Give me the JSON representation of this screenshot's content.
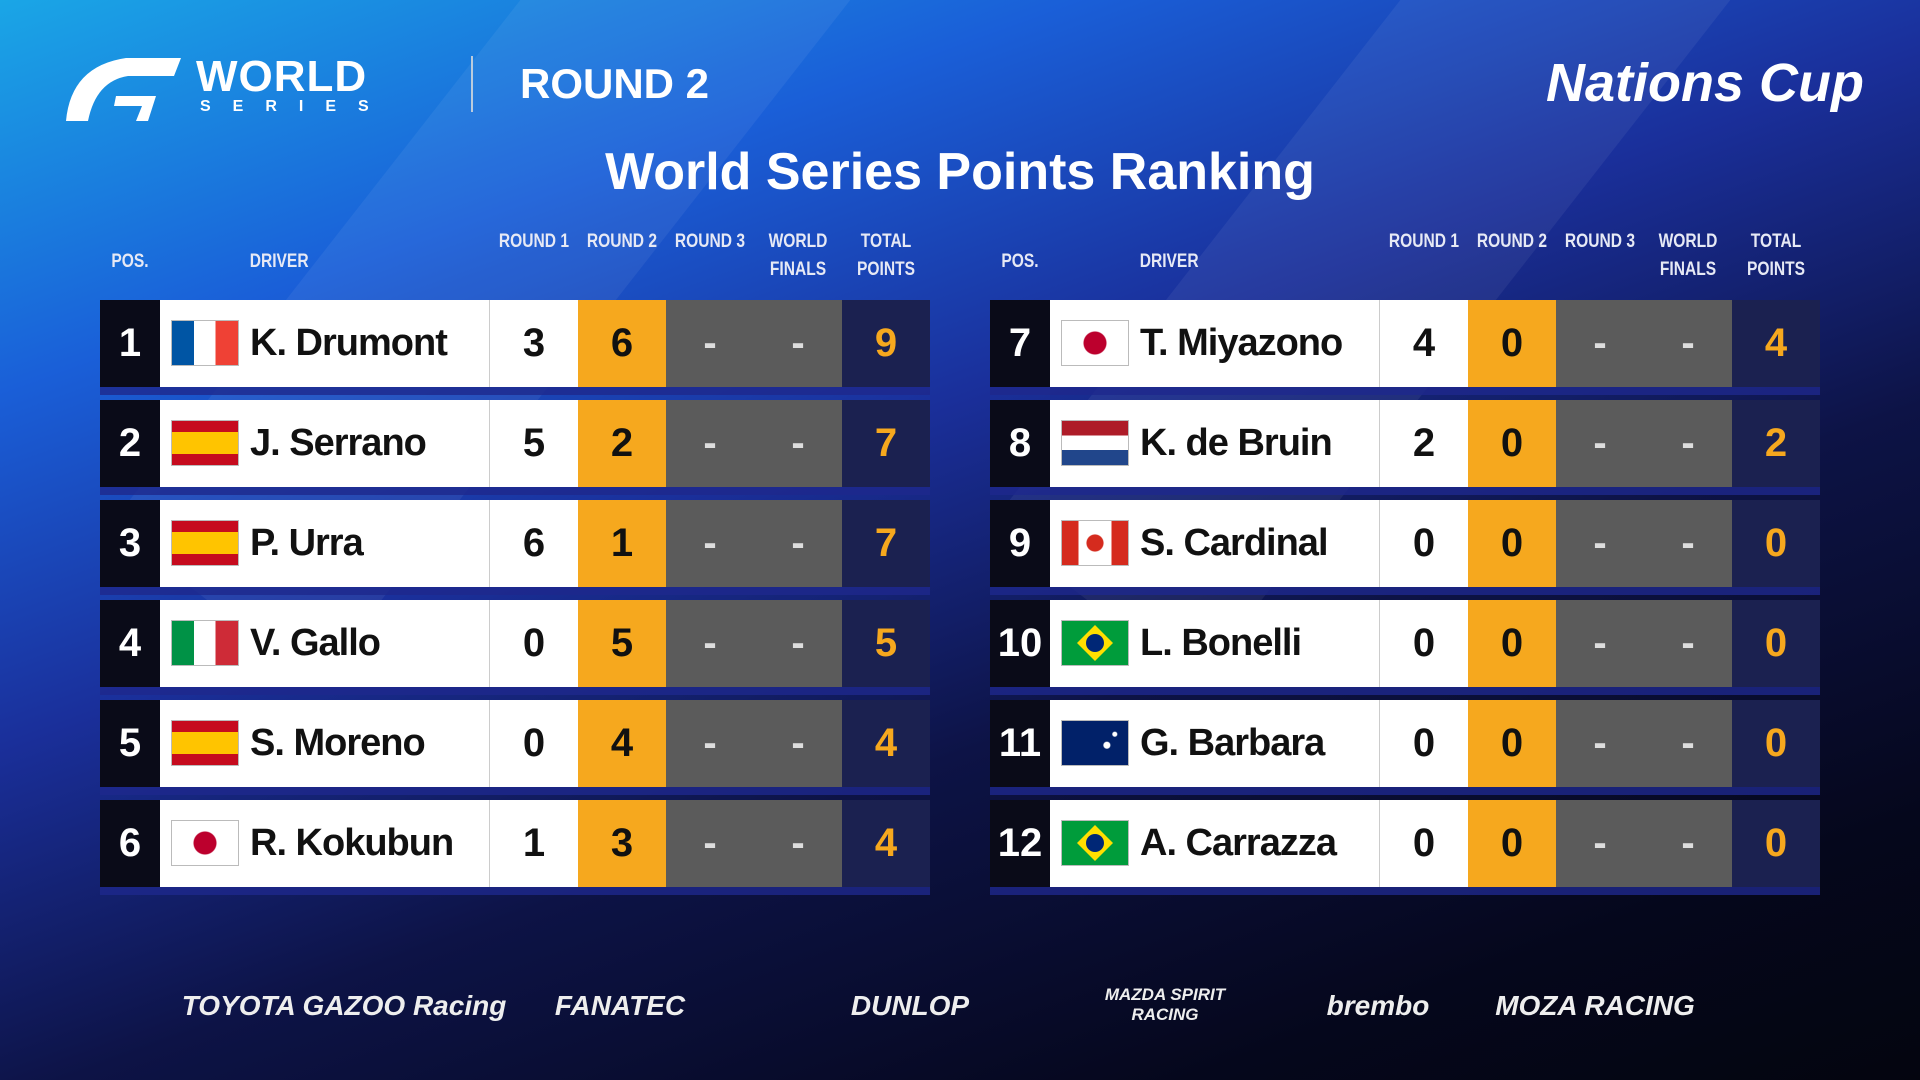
{
  "header": {
    "logo": "WORLD",
    "logo_sub": "SERIES",
    "round": "ROUND 2",
    "event": "Nations Cup",
    "title": "World Series Points Ranking"
  },
  "tables": [
    {
      "columns": [
        "POS.",
        "DRIVER",
        "ROUND 1",
        "ROUND 2",
        "ROUND 3",
        "WORLD FINALS",
        "TOTAL POINTS"
      ],
      "rows": [
        [
          1,
          "K. Drumont",
          3,
          6,
          "-",
          "-",
          9
        ],
        [
          2,
          "J. Serrano",
          5,
          2,
          "-",
          "-",
          7
        ],
        [
          3,
          "P. Urra",
          6,
          1,
          "-",
          "-",
          7
        ],
        [
          4,
          "V. Gallo",
          0,
          5,
          "-",
          "-",
          5
        ],
        [
          5,
          "S. Moreno",
          0,
          4,
          "-",
          "-",
          4
        ],
        [
          6,
          "R. Kokubun",
          1,
          3,
          "-",
          "-",
          4
        ]
      ]
    },
    {
      "columns": [
        "POS.",
        "DRIVER",
        "ROUND 1",
        "ROUND 2",
        "ROUND 3",
        "WORLD FINALS",
        "TOTAL POINTS"
      ],
      "rows": [
        [
          7,
          "T. Miyazono",
          4,
          0,
          "-",
          "-",
          4
        ],
        [
          8,
          "K. de Bruin",
          2,
          0,
          "-",
          "-",
          2
        ],
        [
          9,
          "S. Cardinal",
          0,
          0,
          "-",
          "-",
          0
        ],
        [
          10,
          "L. Bonelli",
          0,
          0,
          "-",
          "-",
          0
        ],
        [
          11,
          "G. Barbara",
          0,
          0,
          "-",
          "-",
          0
        ],
        [
          12,
          "A. Carrazza",
          0,
          0,
          "-",
          "-",
          0
        ]
      ]
    }
  ],
  "sponsors": [
    "TOYOTA GAZOO Racing",
    "FANATEC",
    "DUNLOP",
    "MAZDA SPIRIT RACING",
    "brembo",
    "MOZA RACING"
  ]
}
